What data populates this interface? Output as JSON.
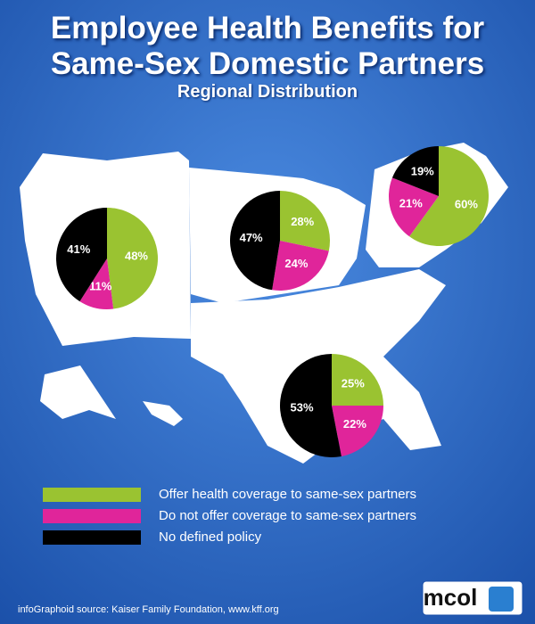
{
  "chart_data": {
    "type": "pie",
    "title": "Employee Health Benefits for Same-Sex Domestic Partners",
    "subtitle": "Regional Distribution",
    "categories": [
      null,
      null,
      null,
      null
    ],
    "series": [
      {
        "name": "Offer health coverage to same-sex partners",
        "color": "#9ac331",
        "values": [
          48,
          28,
          60,
          25
        ],
        "value_labels": [
          "48%",
          "28%",
          "60%",
          "25%"
        ]
      },
      {
        "name": "Do not offer coverage to same-sex partners",
        "color": "#e0259a",
        "values": [
          11,
          24,
          21,
          22
        ],
        "value_labels": [
          "11%",
          "24%",
          "21%",
          "22%"
        ]
      },
      {
        "name": "No defined policy",
        "color": "#000000",
        "values": [
          41,
          47,
          19,
          53
        ],
        "value_labels": [
          "41%",
          "47%",
          "19%",
          "53%"
        ]
      }
    ],
    "source": "infoGraphoid source:  Kaiser Family Foundation, www.kff.org",
    "logo": "mcol"
  }
}
